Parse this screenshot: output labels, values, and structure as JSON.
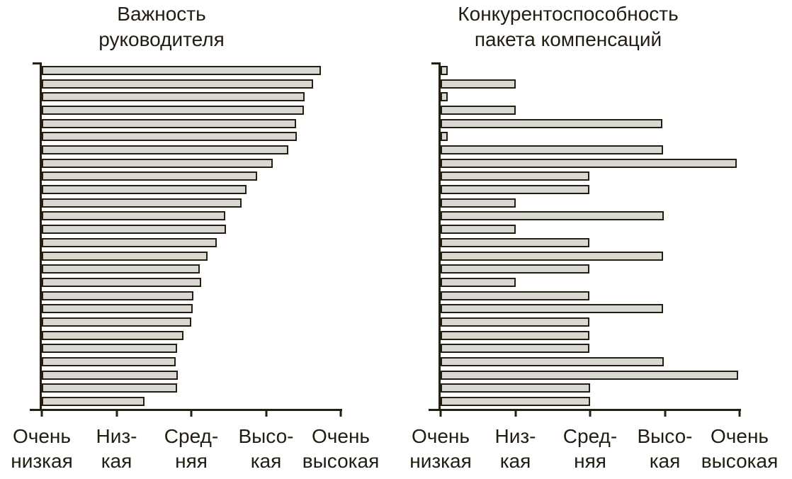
{
  "colors": {
    "background": "#ffffff",
    "bar_fill": "#d9d8d3",
    "bar_border": "#241f11",
    "axis": "#241f11",
    "text": "#221d12"
  },
  "chart_data": [
    {
      "type": "bar",
      "orientation": "horizontal",
      "title": "Важность\nруководителя",
      "xlim": [
        1,
        5
      ],
      "grid": false,
      "legend": false,
      "axis_tick_labels": [
        "Очень\nнизкая",
        "Низ-\nкая",
        "Сред-\nняя",
        "Высо-\nкая",
        "Очень\nвысокая"
      ],
      "axis_tick_labels_plain": [
        "Очень низкая",
        "Низкая",
        "Средняя",
        "Высокая",
        "Очень высокая"
      ],
      "bar_count": 26,
      "values": [
        4.73,
        4.63,
        4.52,
        4.51,
        4.4,
        4.41,
        4.3,
        4.09,
        3.88,
        3.74,
        3.67,
        3.45,
        3.46,
        3.34,
        3.22,
        3.11,
        3.13,
        3.03,
        3.02,
        3.0,
        2.9,
        2.81,
        2.79,
        2.82,
        2.81,
        2.37
      ]
    },
    {
      "type": "bar",
      "orientation": "horizontal",
      "title": "Конкурентоспособность\nпакета компенсаций",
      "xlim": [
        1,
        5
      ],
      "grid": false,
      "legend": false,
      "axis_tick_labels": [
        "Очень\nнизкая",
        "Низ-\nкая",
        "Сред-\nняя",
        "Высо-\nкая",
        "Очень\nвысокая"
      ],
      "axis_tick_labels_plain": [
        "Очень низкая",
        "Низкая",
        "Средняя",
        "Высокая",
        "Очень высокая"
      ],
      "bar_count": 26,
      "values": [
        1.09,
        2.0,
        1.09,
        2.0,
        3.97,
        1.09,
        3.98,
        4.96,
        2.99,
        2.99,
        2.0,
        3.99,
        2.0,
        2.99,
        3.98,
        2.99,
        2.0,
        2.99,
        3.98,
        2.99,
        2.99,
        2.99,
        3.99,
        4.98,
        3.0,
        3.0
      ]
    }
  ]
}
